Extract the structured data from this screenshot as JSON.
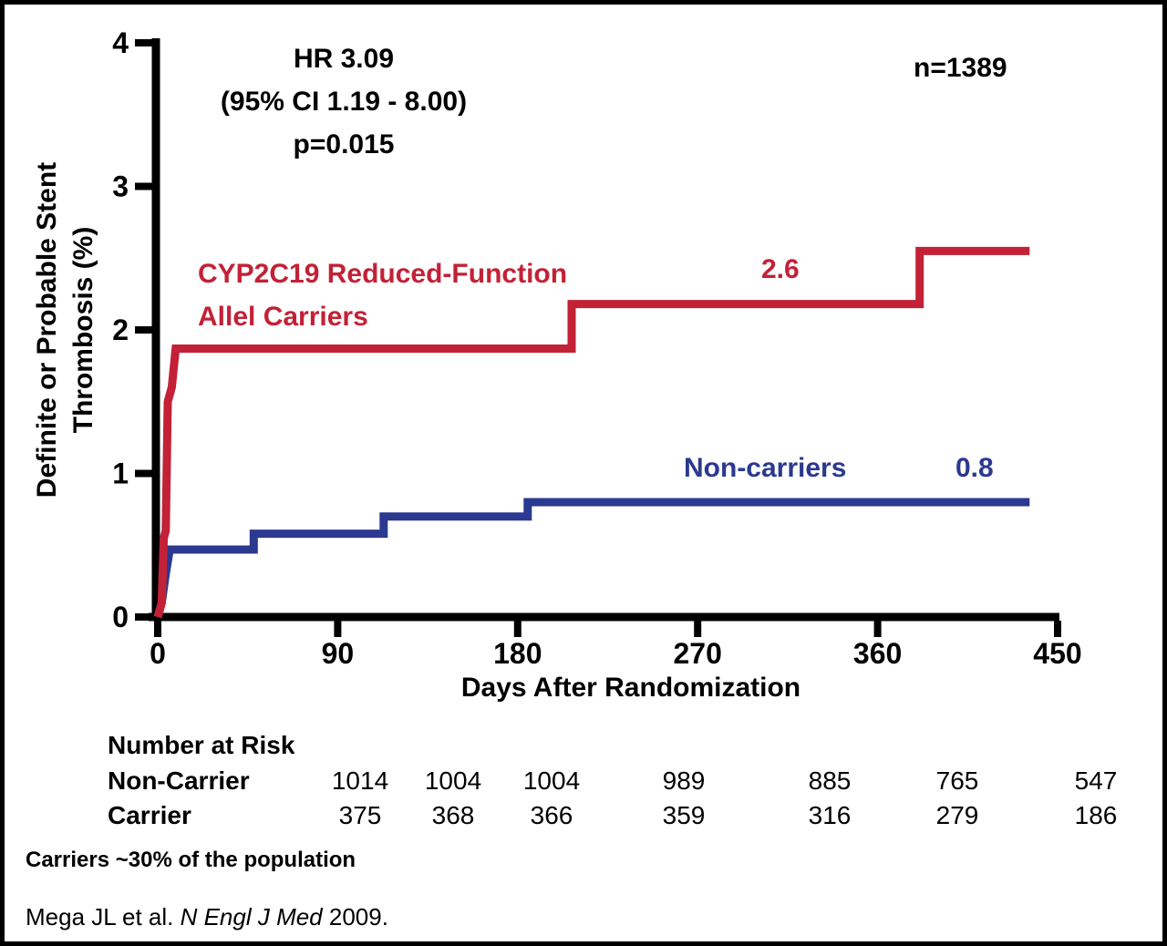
{
  "figure": {
    "annotation": {
      "line1": "HR 3.09",
      "line2": "(95% CI 1.19 - 8.00)",
      "line3": "p=0.015"
    },
    "n_label": "n=1389",
    "series_labels": {
      "carriers_line1": "CYP2C19 Reduced-Function",
      "carriers_line2": "Allel Carriers",
      "carriers_value": "2.6",
      "noncarriers": "Non-carriers",
      "noncarriers_value": "0.8"
    }
  },
  "chart_data": {
    "type": "line",
    "subtype": "kaplan-meier-step",
    "title": "",
    "xlabel": "Days After Randomization",
    "ylabel_line1": "Definite or Probable Stent",
    "ylabel_line2": "Thrombosis (%)",
    "xlim": [
      0,
      450
    ],
    "ylim": [
      0,
      4
    ],
    "x_ticks": [
      0,
      90,
      180,
      270,
      360,
      450
    ],
    "y_ticks": [
      0,
      1,
      2,
      3,
      4
    ],
    "grid": false,
    "colors": {
      "carriers": "#c32136",
      "noncarriers": "#2b3990",
      "axis": "#000000"
    },
    "series": [
      {
        "name": "Non-carriers",
        "color": "#2b3990",
        "final_label": 0.8,
        "points": [
          [
            0,
            0
          ],
          [
            2,
            0.1
          ],
          [
            3,
            0.2
          ],
          [
            4,
            0.3
          ],
          [
            6,
            0.47
          ],
          [
            48,
            0.47
          ],
          [
            48,
            0.58
          ],
          [
            113,
            0.58
          ],
          [
            113,
            0.7
          ],
          [
            185,
            0.7
          ],
          [
            185,
            0.8
          ],
          [
            436,
            0.8
          ]
        ]
      },
      {
        "name": "CYP2C19 Reduced-Function Allel Carriers",
        "color": "#c32136",
        "final_label": 2.6,
        "points": [
          [
            0,
            0
          ],
          [
            2,
            0.1
          ],
          [
            3,
            0.55
          ],
          [
            4,
            0.6
          ],
          [
            5,
            1.5
          ],
          [
            6,
            1.55
          ],
          [
            7,
            1.6
          ],
          [
            9,
            1.87
          ],
          [
            207,
            1.87
          ],
          [
            207,
            2.18
          ],
          [
            381,
            2.18
          ],
          [
            381,
            2.55
          ],
          [
            436,
            2.55
          ]
        ]
      }
    ]
  },
  "risk_table": {
    "heading": "Number at Risk",
    "rows": [
      {
        "label": "Non-Carrier",
        "values": [
          "1014",
          "1004",
          "1004",
          "989",
          "885",
          "765",
          "547"
        ]
      },
      {
        "label": "Carrier",
        "values": [
          "375",
          "368",
          "366",
          "359",
          "316",
          "279",
          "186"
        ]
      }
    ]
  },
  "footer": {
    "note": "Carriers ~30% of the population",
    "citation_pre": "Mega JL et al. ",
    "citation_italic": "N Engl J Med",
    "citation_post": " 2009."
  }
}
